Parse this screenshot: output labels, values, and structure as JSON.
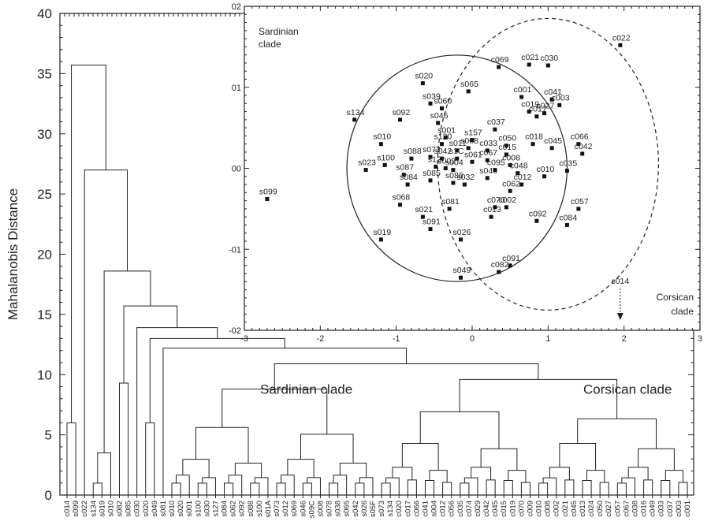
{
  "chart_data": [
    {
      "type": "dendrogram",
      "ylabel": "Mahalanobis Distance",
      "ylim": [
        0,
        40
      ],
      "yticks": [
        0,
        5,
        10,
        15,
        20,
        25,
        30,
        35,
        40
      ],
      "leaves": [
        "c014",
        "s099",
        "c022",
        "s134",
        "s019",
        "s010",
        "s082",
        "s085",
        "c030",
        "s020",
        "s049",
        "s081",
        "s010",
        "s020",
        "s001",
        "s100",
        "s030",
        "s127",
        "s084",
        "s062",
        "s092",
        "s088",
        "s100",
        "s01A",
        "s073",
        "s012",
        "s069",
        "s046",
        "s09C",
        "s008",
        "s078",
        "s038",
        "s065",
        "s042",
        "s026",
        "s05F",
        "s073",
        "s134",
        "c020",
        "c017",
        "c066",
        "c041",
        "s004",
        "c012",
        "c056",
        "c035",
        "c074",
        "c029",
        "c042",
        "c045",
        "c015",
        "c019",
        "c070",
        "c009",
        "c010",
        "c008",
        "c002",
        "c021",
        "c045",
        "c013",
        "c024",
        "c050",
        "c027",
        "c057",
        "c067",
        "c038",
        "c016",
        "c049",
        "c033",
        "c037",
        "c003",
        "c001"
      ],
      "annotations": [
        "Sardinian clade",
        "Corsican clade"
      ]
    },
    {
      "type": "scatter",
      "xlim": [
        -3,
        3
      ],
      "ylim": [
        -2,
        2
      ],
      "xticks": [
        -3,
        -2,
        -1,
        0,
        1,
        2,
        3
      ],
      "yticks": [
        -2,
        -1,
        0,
        1,
        2
      ],
      "ytick_labels": [
        "-02",
        "-01",
        "00",
        "01",
        "02"
      ],
      "annotations": [
        "Sardinian clade",
        "Corsican clade",
        "c014"
      ],
      "points": [
        {
          "label": "c022",
          "x": 1.95,
          "y": 1.52
        },
        {
          "label": "c069",
          "x": 0.35,
          "y": 1.25
        },
        {
          "label": "c021",
          "x": 0.75,
          "y": 1.28
        },
        {
          "label": "c030",
          "x": 1.0,
          "y": 1.27
        },
        {
          "label": "s020",
          "x": -0.65,
          "y": 1.05
        },
        {
          "label": "s065",
          "x": -0.05,
          "y": 0.95
        },
        {
          "label": "c001",
          "x": 0.65,
          "y": 0.88
        },
        {
          "label": "c041",
          "x": 1.05,
          "y": 0.85
        },
        {
          "label": "c003",
          "x": 1.15,
          "y": 0.78
        },
        {
          "label": "s039",
          "x": -0.55,
          "y": 0.8
        },
        {
          "label": "s060",
          "x": -0.4,
          "y": 0.74
        },
        {
          "label": "c019",
          "x": 0.75,
          "y": 0.7
        },
        {
          "label": "c027",
          "x": 0.95,
          "y": 0.68
        },
        {
          "label": "c017",
          "x": 0.85,
          "y": 0.64
        },
        {
          "label": "s134",
          "x": -1.55,
          "y": 0.6
        },
        {
          "label": "s092",
          "x": -0.95,
          "y": 0.6
        },
        {
          "label": "s046",
          "x": -0.45,
          "y": 0.56
        },
        {
          "label": "c037",
          "x": 0.3,
          "y": 0.48
        },
        {
          "label": "s001",
          "x": -0.35,
          "y": 0.38
        },
        {
          "label": "s157",
          "x": 0.0,
          "y": 0.35
        },
        {
          "label": "c066",
          "x": 1.4,
          "y": 0.3
        },
        {
          "label": "c042",
          "x": 1.45,
          "y": 0.18
        },
        {
          "label": "s010",
          "x": -1.2,
          "y": 0.3
        },
        {
          "label": "s120",
          "x": -0.4,
          "y": 0.3
        },
        {
          "label": "s008",
          "x": -0.05,
          "y": 0.25
        },
        {
          "label": "c050",
          "x": 0.45,
          "y": 0.28
        },
        {
          "label": "c018",
          "x": 0.8,
          "y": 0.3
        },
        {
          "label": "s011",
          "x": -0.2,
          "y": 0.22
        },
        {
          "label": "c033",
          "x": 0.2,
          "y": 0.22
        },
        {
          "label": "c045",
          "x": 1.05,
          "y": 0.25
        },
        {
          "label": "c015",
          "x": 0.45,
          "y": 0.17
        },
        {
          "label": "s088",
          "x": -0.8,
          "y": 0.12
        },
        {
          "label": "s073",
          "x": -0.55,
          "y": 0.14
        },
        {
          "label": "s042",
          "x": -0.4,
          "y": 0.12
        },
        {
          "label": "s1C",
          "x": -0.2,
          "y": 0.12
        },
        {
          "label": "s061",
          "x": 0.0,
          "y": 0.08
        },
        {
          "label": "c067",
          "x": 0.2,
          "y": 0.1
        },
        {
          "label": "c008",
          "x": 0.5,
          "y": 0.04
        },
        {
          "label": "s023",
          "x": -1.4,
          "y": -0.02
        },
        {
          "label": "s100",
          "x": -1.15,
          "y": 0.04
        },
        {
          "label": "s12",
          "x": -0.48,
          "y": 0.02
        },
        {
          "label": "s002",
          "x": -0.35,
          "y": 0.0
        },
        {
          "label": "s004",
          "x": -0.25,
          "y": -0.02
        },
        {
          "label": "c095",
          "x": 0.3,
          "y": -0.02
        },
        {
          "label": "c048",
          "x": 0.6,
          "y": -0.06
        },
        {
          "label": "c010",
          "x": 0.95,
          "y": -0.1
        },
        {
          "label": "c035",
          "x": 1.25,
          "y": -0.03
        },
        {
          "label": "s087",
          "x": -0.9,
          "y": -0.08
        },
        {
          "label": "s040",
          "x": 0.2,
          "y": -0.12
        },
        {
          "label": "s084",
          "x": -0.85,
          "y": -0.2
        },
        {
          "label": "s085",
          "x": -0.55,
          "y": -0.15
        },
        {
          "label": "s086",
          "x": -0.25,
          "y": -0.18
        },
        {
          "label": "s032",
          "x": -0.1,
          "y": -0.2
        },
        {
          "label": "c012",
          "x": 0.65,
          "y": -0.2
        },
        {
          "label": "c062",
          "x": 0.5,
          "y": -0.28
        },
        {
          "label": "s068",
          "x": -0.95,
          "y": -0.45
        },
        {
          "label": "s081",
          "x": -0.3,
          "y": -0.5
        },
        {
          "label": "c070",
          "x": 0.3,
          "y": -0.48
        },
        {
          "label": "c002",
          "x": 0.45,
          "y": -0.48
        },
        {
          "label": "c057",
          "x": 1.4,
          "y": -0.5
        },
        {
          "label": "s021",
          "x": -0.65,
          "y": -0.6
        },
        {
          "label": "c013",
          "x": 0.25,
          "y": -0.6
        },
        {
          "label": "c092",
          "x": 0.85,
          "y": -0.65
        },
        {
          "label": "c084",
          "x": 1.25,
          "y": -0.7
        },
        {
          "label": "s091",
          "x": -0.55,
          "y": -0.75
        },
        {
          "label": "s019",
          "x": -1.2,
          "y": -0.88
        },
        {
          "label": "s026",
          "x": -0.15,
          "y": -0.88
        },
        {
          "label": "c091",
          "x": 0.5,
          "y": -1.2
        },
        {
          "label": "c082",
          "x": 0.35,
          "y": -1.28
        },
        {
          "label": "s049",
          "x": -0.15,
          "y": -1.35
        },
        {
          "label": "s099",
          "x": -2.7,
          "y": -0.38
        }
      ]
    }
  ]
}
